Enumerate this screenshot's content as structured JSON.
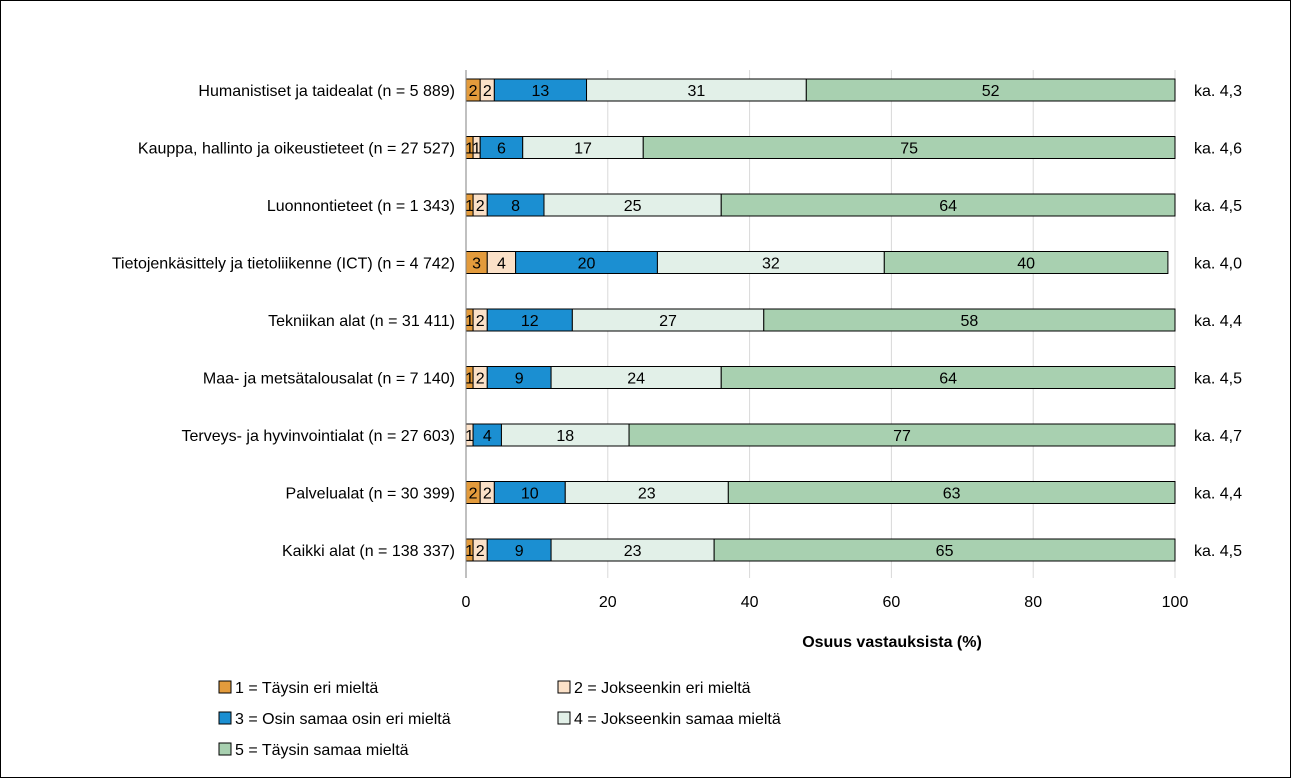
{
  "chart_data": {
    "type": "bar",
    "orientation": "horizontal",
    "stacked": true,
    "categories": [
      "Humanistiset ja taidealat (n = 5 889)",
      "Kauppa, hallinto ja oikeustieteet (n = 27 527)",
      "Luonnontieteet (n = 1 343)",
      "Tietojenkäsittely ja tietoliikenne (ICT) (n = 4 742)",
      "Tekniikan alat (n = 31 411)",
      "Maa- ja metsätalousalat (n = 7 140)",
      "Terveys- ja hyvinvointialat (n = 27 603)",
      "Palvelualat (n = 30 399)",
      "Kaikki alat (n = 138 337)"
    ],
    "series": [
      {
        "name": "1 = Täysin eri mieltä",
        "color": "#e39b3c",
        "values": [
          2,
          1,
          1,
          3,
          1,
          1,
          0,
          2,
          1
        ]
      },
      {
        "name": "2 = Jokseenkin eri mieltä",
        "color": "#fbe1c8",
        "values": [
          2,
          1,
          2,
          4,
          2,
          2,
          1,
          2,
          2
        ]
      },
      {
        "name": "3 = Osin samaa osin eri mieltä",
        "color": "#1b8fd2",
        "values": [
          13,
          6,
          8,
          20,
          12,
          9,
          4,
          10,
          9
        ]
      },
      {
        "name": "4 = Jokseenkin samaa mieltä",
        "color": "#e2f0e8",
        "values": [
          31,
          17,
          25,
          32,
          27,
          24,
          18,
          23,
          23
        ]
      },
      {
        "name": "5 = Täysin samaa mieltä",
        "color": "#a8d0b0",
        "values": [
          52,
          75,
          64,
          40,
          58,
          64,
          77,
          63,
          65
        ]
      }
    ],
    "means": [
      "ka. 4,3",
      "ka. 4,6",
      "ka. 4,5",
      "ka. 4,0",
      "ka. 4,4",
      "ka. 4,5",
      "ka. 4,7",
      "ka. 4,4",
      "ka. 4,5"
    ],
    "xlabel": "Osuus vastauksista (%)",
    "xlim": [
      0,
      100
    ],
    "xticks": [
      0,
      20,
      40,
      60,
      80,
      100
    ],
    "grid": true,
    "legend_position": "bottom"
  }
}
